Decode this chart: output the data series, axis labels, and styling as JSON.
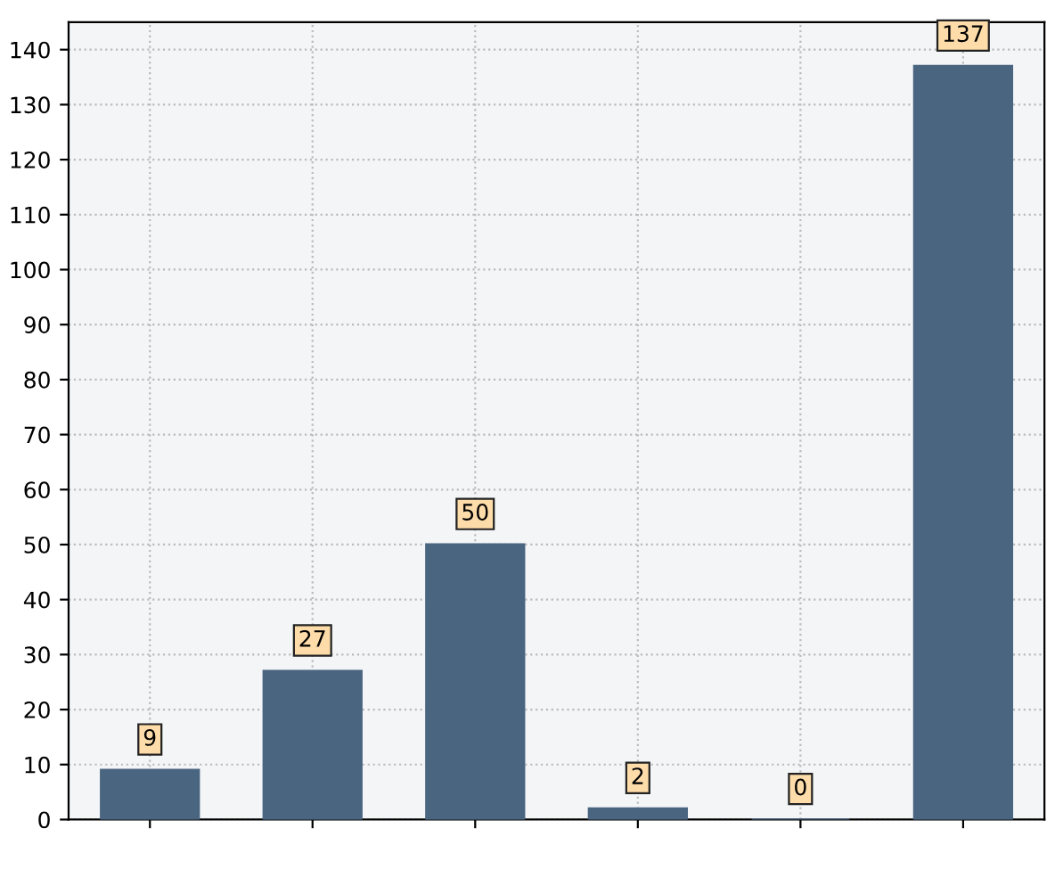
{
  "chart_data": {
    "type": "bar",
    "categories": [
      null,
      null,
      null,
      null,
      null,
      null
    ],
    "values": [
      9,
      27,
      50,
      2,
      0,
      137
    ],
    "color": "#4a6580",
    "ylim": [
      0,
      145
    ],
    "yticks": [
      0,
      10,
      20,
      30,
      40,
      50,
      60,
      70,
      80,
      90,
      100,
      110,
      120,
      130,
      140
    ],
    "grid": true,
    "data_labels": true
  }
}
